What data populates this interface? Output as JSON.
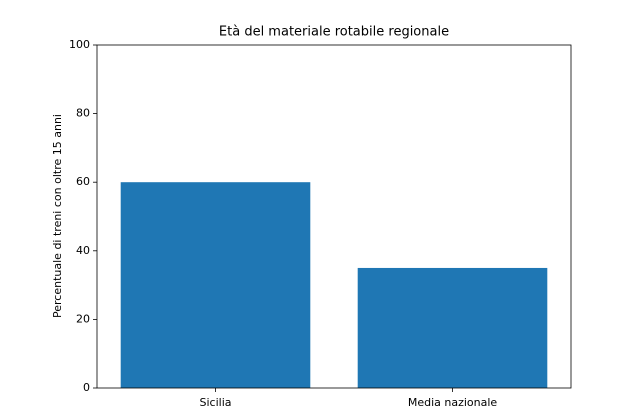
{
  "chart_data": {
    "type": "bar",
    "title": "Età del materiale rotabile regionale",
    "y_label": "Percentuale di treni con oltre 15 anni",
    "categories": [
      "Sicilia",
      "Media nazionale"
    ],
    "values": [
      60,
      35
    ],
    "color": "#1f77b4",
    "ylim": [
      0,
      100
    ],
    "yticks": [
      0,
      20,
      40,
      60,
      80,
      100
    ],
    "grid": false
  }
}
